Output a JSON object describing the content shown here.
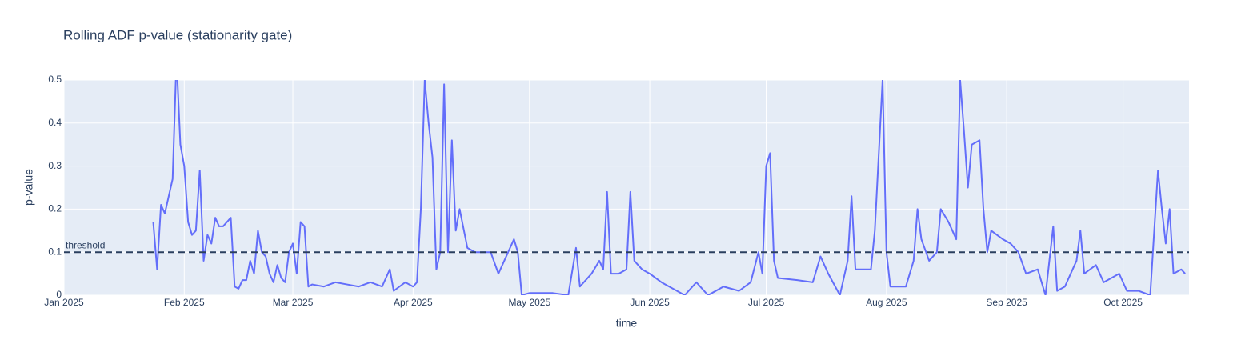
{
  "chart_data": {
    "type": "line",
    "title": "Rolling ADF p-value (stationarity gate)",
    "x_label": "time",
    "y_label": "p-value",
    "xlim": [
      "2025-01-01",
      "2025-10-18"
    ],
    "ylim": [
      0,
      0.5
    ],
    "xticks": [
      {
        "value": "2025-01-01",
        "label": "Jan 2025"
      },
      {
        "value": "2025-02-01",
        "label": "Feb 2025"
      },
      {
        "value": "2025-03-01",
        "label": "Mar 2025"
      },
      {
        "value": "2025-04-01",
        "label": "Apr 2025"
      },
      {
        "value": "2025-05-01",
        "label": "May 2025"
      },
      {
        "value": "2025-06-01",
        "label": "Jun 2025"
      },
      {
        "value": "2025-07-01",
        "label": "Jul 2025"
      },
      {
        "value": "2025-08-01",
        "label": "Aug 2025"
      },
      {
        "value": "2025-09-01",
        "label": "Sep 2025"
      },
      {
        "value": "2025-10-01",
        "label": "Oct 2025"
      }
    ],
    "yticks": [
      0,
      0.1,
      0.2,
      0.3,
      0.4,
      0.5
    ],
    "grid": true,
    "threshold": {
      "value": 0.1,
      "label": "threshold",
      "color": "#2a3f5f"
    },
    "x": [
      "2025-01-24",
      "2025-01-25",
      "2025-01-26",
      "2025-01-27",
      "2025-01-28",
      "2025-01-29",
      "2025-01-30",
      "2025-01-31",
      "2025-02-01",
      "2025-02-02",
      "2025-02-03",
      "2025-02-04",
      "2025-02-05",
      "2025-02-06",
      "2025-02-07",
      "2025-02-08",
      "2025-02-09",
      "2025-02-10",
      "2025-02-11",
      "2025-02-12",
      "2025-02-13",
      "2025-02-14",
      "2025-02-15",
      "2025-02-16",
      "2025-02-17",
      "2025-02-18",
      "2025-02-19",
      "2025-02-20",
      "2025-02-21",
      "2025-02-22",
      "2025-02-23",
      "2025-02-24",
      "2025-02-25",
      "2025-02-26",
      "2025-02-27",
      "2025-02-28",
      "2025-03-01",
      "2025-03-02",
      "2025-03-03",
      "2025-03-04",
      "2025-03-05",
      "2025-03-06",
      "2025-03-09",
      "2025-03-12",
      "2025-03-15",
      "2025-03-18",
      "2025-03-21",
      "2025-03-24",
      "2025-03-26",
      "2025-03-27",
      "2025-03-30",
      "2025-04-01",
      "2025-04-02",
      "2025-04-03",
      "2025-04-04",
      "2025-04-05",
      "2025-04-06",
      "2025-04-07",
      "2025-04-08",
      "2025-04-09",
      "2025-04-10",
      "2025-04-11",
      "2025-04-12",
      "2025-04-13",
      "2025-04-15",
      "2025-04-17",
      "2025-04-19",
      "2025-04-21",
      "2025-04-23",
      "2025-04-25",
      "2025-04-27",
      "2025-04-28",
      "2025-04-29",
      "2025-05-01",
      "2025-05-04",
      "2025-05-07",
      "2025-05-11",
      "2025-05-13",
      "2025-05-14",
      "2025-05-17",
      "2025-05-19",
      "2025-05-20",
      "2025-05-21",
      "2025-05-22",
      "2025-05-24",
      "2025-05-26",
      "2025-05-27",
      "2025-05-28",
      "2025-05-30",
      "2025-06-01",
      "2025-06-04",
      "2025-06-06",
      "2025-06-10",
      "2025-06-13",
      "2025-06-16",
      "2025-06-20",
      "2025-06-24",
      "2025-06-27",
      "2025-06-29",
      "2025-06-30",
      "2025-07-01",
      "2025-07-02",
      "2025-07-03",
      "2025-07-04",
      "2025-07-09",
      "2025-07-13",
      "2025-07-15",
      "2025-07-17",
      "2025-07-20",
      "2025-07-22",
      "2025-07-23",
      "2025-07-24",
      "2025-07-28",
      "2025-07-29",
      "2025-07-31",
      "2025-08-01",
      "2025-08-02",
      "2025-08-06",
      "2025-08-08",
      "2025-08-09",
      "2025-08-10",
      "2025-08-12",
      "2025-08-14",
      "2025-08-15",
      "2025-08-17",
      "2025-08-19",
      "2025-08-20",
      "2025-08-21",
      "2025-08-22",
      "2025-08-23",
      "2025-08-25",
      "2025-08-26",
      "2025-08-27",
      "2025-08-28",
      "2025-08-31",
      "2025-09-02",
      "2025-09-04",
      "2025-09-06",
      "2025-09-09",
      "2025-09-11",
      "2025-09-13",
      "2025-09-14",
      "2025-09-16",
      "2025-09-19",
      "2025-09-20",
      "2025-09-21",
      "2025-09-24",
      "2025-09-26",
      "2025-09-30",
      "2025-10-02",
      "2025-10-05",
      "2025-10-08",
      "2025-10-10",
      "2025-10-11",
      "2025-10-12",
      "2025-10-13",
      "2025-10-14",
      "2025-10-16",
      "2025-10-17"
    ],
    "series": [
      {
        "name": "p-value",
        "color": "#636efa",
        "values": [
          0.17,
          0.06,
          0.21,
          0.19,
          0.23,
          0.27,
          0.55,
          0.35,
          0.3,
          0.17,
          0.14,
          0.15,
          0.29,
          0.08,
          0.14,
          0.12,
          0.18,
          0.16,
          0.16,
          0.17,
          0.18,
          0.02,
          0.015,
          0.035,
          0.035,
          0.08,
          0.05,
          0.15,
          0.1,
          0.09,
          0.05,
          0.03,
          0.07,
          0.04,
          0.03,
          0.1,
          0.12,
          0.05,
          0.17,
          0.16,
          0.02,
          0.025,
          0.02,
          0.03,
          0.025,
          0.02,
          0.03,
          0.02,
          0.06,
          0.01,
          0.03,
          0.02,
          0.03,
          0.2,
          0.5,
          0.4,
          0.32,
          0.06,
          0.1,
          0.49,
          0.1,
          0.36,
          0.15,
          0.2,
          0.11,
          0.1,
          0.1,
          0.1,
          0.05,
          0.09,
          0.13,
          0.1,
          0.0,
          0.005,
          0.005,
          0.005,
          0.0,
          0.11,
          0.02,
          0.05,
          0.08,
          0.06,
          0.24,
          0.05,
          0.05,
          0.06,
          0.24,
          0.08,
          0.06,
          0.05,
          0.03,
          0.02,
          0.0,
          0.03,
          0.0,
          0.02,
          0.01,
          0.03,
          0.1,
          0.05,
          0.3,
          0.33,
          0.08,
          0.04,
          0.035,
          0.03,
          0.09,
          0.05,
          0.0,
          0.08,
          0.23,
          0.06,
          0.06,
          0.15,
          0.5,
          0.1,
          0.02,
          0.02,
          0.08,
          0.2,
          0.13,
          0.08,
          0.1,
          0.2,
          0.17,
          0.13,
          0.5,
          0.38,
          0.25,
          0.35,
          0.36,
          0.2,
          0.1,
          0.15,
          0.13,
          0.12,
          0.1,
          0.05,
          0.06,
          0.0,
          0.16,
          0.01,
          0.02,
          0.08,
          0.15,
          0.05,
          0.07,
          0.03,
          0.05,
          0.01,
          0.01,
          0.0,
          0.29,
          0.2,
          0.12,
          0.2,
          0.05,
          0.06,
          0.05
        ]
      }
    ]
  }
}
